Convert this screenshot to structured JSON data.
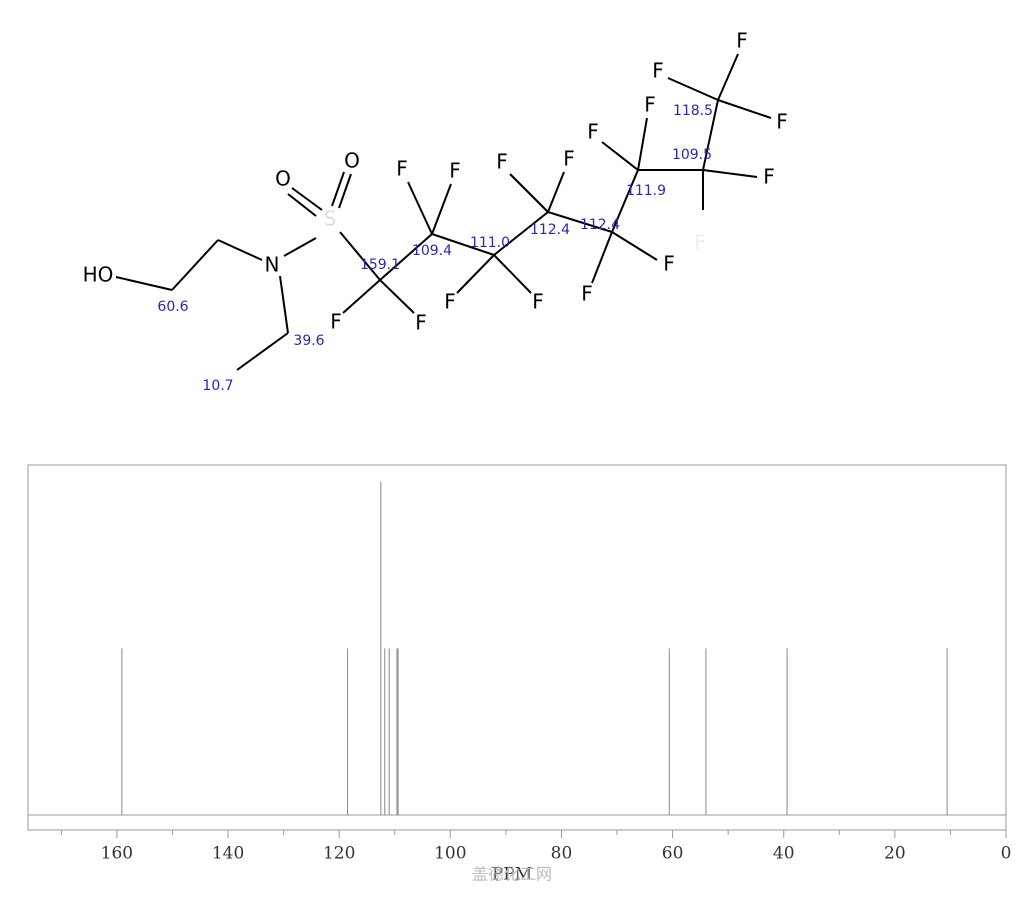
{
  "structure": {
    "atoms": [
      "HO",
      "N",
      "O",
      "O",
      "S",
      "F",
      "F",
      "F",
      "F",
      "F",
      "F",
      "F",
      "F",
      "F",
      "F",
      "F",
      "F",
      "F",
      "F",
      "F",
      "F",
      "F"
    ],
    "shifts": [
      "60.6",
      "39.6",
      "10.7",
      "159.1",
      "109.4",
      "111.0",
      "112.4",
      "112.4",
      "111.9",
      "109.5",
      "118.5"
    ]
  },
  "chart_data": {
    "type": "spectrum",
    "x_label": "PPM",
    "watermark": "盖德化工网",
    "x": [
      159.1,
      118.5,
      112.5,
      111.8,
      111.0,
      109.6,
      109.4,
      60.6,
      54.0,
      39.4,
      10.6
    ],
    "values": [
      0.5,
      0.5,
      1.0,
      0.5,
      0.5,
      0.5,
      0.5,
      0.5,
      0.5,
      0.5,
      0.5
    ],
    "color": "#888888",
    "xlim": [
      176,
      0
    ],
    "ylim": [
      0,
      1.05
    ],
    "xticks": [
      160,
      140,
      120,
      100,
      80,
      60,
      40,
      20,
      0
    ],
    "xminorticks": [
      170,
      150,
      130,
      110,
      90,
      70,
      50,
      30,
      10
    ]
  }
}
